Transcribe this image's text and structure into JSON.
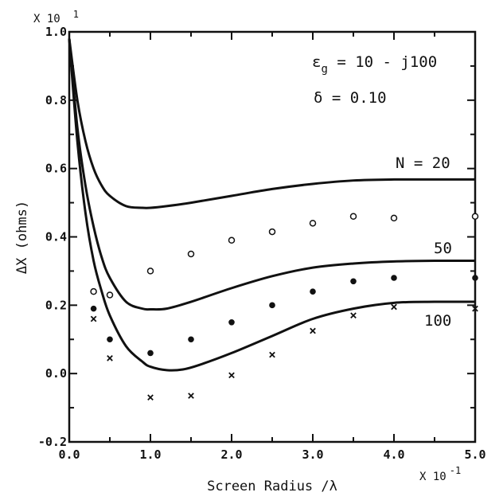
{
  "chart_data": {
    "type": "line",
    "xlabel": "Screen Radius /λ",
    "ylabel": "ΔX (ohms)",
    "x_multiplier": "X 10",
    "x_multiplier_exp": "-1",
    "y_multiplier": "X 10",
    "y_multiplier_exp": "1",
    "xlim": [
      0.0,
      5.0
    ],
    "ylim": [
      -0.2,
      1.0
    ],
    "x_ticks": [
      0.0,
      1.0,
      2.0,
      3.0,
      4.0,
      5.0
    ],
    "x_tick_labels": [
      "0.0",
      "1.0",
      "2.0",
      "3.0",
      "4.0",
      "5.0"
    ],
    "y_ticks": [
      -0.2,
      0.0,
      0.2,
      0.4,
      0.6,
      0.8,
      1.0
    ],
    "y_tick_labels": [
      "-0.2",
      "0.0",
      "0.2",
      "0.4",
      "0.6",
      "0.8",
      "1.0"
    ],
    "grid": false,
    "annotations": {
      "eps_sym": "ε",
      "eps_sub": "g",
      "eps_rest": " = 10 - j100",
      "delta": "δ = 0.10"
    },
    "series": [
      {
        "name": "N = 20",
        "style": "line",
        "x": [
          0.0,
          0.1,
          0.2,
          0.3,
          0.4,
          0.5,
          0.7,
          0.9,
          1.0,
          1.2,
          1.5,
          2.0,
          2.5,
          3.0,
          3.5,
          4.0,
          4.5,
          5.0
        ],
        "y": [
          0.98,
          0.8,
          0.68,
          0.6,
          0.55,
          0.52,
          0.49,
          0.485,
          0.485,
          0.49,
          0.5,
          0.52,
          0.54,
          0.555,
          0.565,
          0.568,
          0.568,
          0.568
        ]
      },
      {
        "name": "50",
        "style": "line",
        "x": [
          0.0,
          0.1,
          0.2,
          0.3,
          0.4,
          0.5,
          0.7,
          0.9,
          1.0,
          1.2,
          1.5,
          2.0,
          2.5,
          3.0,
          3.5,
          4.0,
          4.5,
          5.0
        ],
        "y": [
          0.98,
          0.72,
          0.55,
          0.43,
          0.34,
          0.28,
          0.21,
          0.19,
          0.188,
          0.19,
          0.21,
          0.25,
          0.285,
          0.31,
          0.322,
          0.328,
          0.33,
          0.33
        ]
      },
      {
        "name": "100",
        "style": "line",
        "x": [
          0.0,
          0.1,
          0.2,
          0.3,
          0.4,
          0.5,
          0.7,
          0.9,
          1.0,
          1.2,
          1.4,
          1.6,
          2.0,
          2.5,
          3.0,
          3.5,
          4.0,
          4.5,
          5.0
        ],
        "y": [
          0.98,
          0.68,
          0.47,
          0.33,
          0.24,
          0.17,
          0.08,
          0.035,
          0.02,
          0.01,
          0.012,
          0.025,
          0.06,
          0.11,
          0.16,
          0.19,
          0.207,
          0.21,
          0.21
        ]
      },
      {
        "name": "N = 20 data",
        "style": "open-circle",
        "x": [
          0.3,
          0.5,
          1.0,
          1.5,
          2.0,
          2.5,
          3.0,
          3.5,
          4.0,
          5.0
        ],
        "y": [
          0.24,
          0.23,
          0.3,
          0.35,
          0.39,
          0.415,
          0.44,
          0.46,
          0.455,
          0.46
        ]
      },
      {
        "name": "50 data",
        "style": "filled-circle",
        "x": [
          0.3,
          0.5,
          1.0,
          1.5,
          2.0,
          2.5,
          3.0,
          3.5,
          4.0,
          5.0
        ],
        "y": [
          0.19,
          0.1,
          0.06,
          0.1,
          0.15,
          0.2,
          0.24,
          0.27,
          0.28,
          0.28
        ]
      },
      {
        "name": "100 data",
        "style": "cross",
        "x": [
          0.3,
          0.5,
          1.0,
          1.5,
          2.0,
          2.5,
          3.0,
          3.5,
          4.0,
          5.0
        ],
        "y": [
          0.16,
          0.045,
          -0.07,
          -0.065,
          -0.005,
          0.055,
          0.125,
          0.17,
          0.195,
          0.19
        ]
      }
    ]
  }
}
